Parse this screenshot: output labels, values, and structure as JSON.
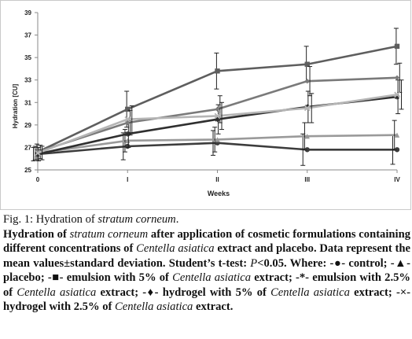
{
  "chart_data": {
    "type": "line",
    "xlabel": "Weeks",
    "ylabel": "Hydration [CU]",
    "categories": [
      "0",
      "I",
      "II",
      "III",
      "IV"
    ],
    "ylim": [
      25,
      39
    ],
    "yticks": [
      25,
      27,
      29,
      31,
      33,
      35,
      37,
      39
    ],
    "grid": false,
    "series": [
      {
        "name": "control",
        "marker": "circle",
        "color": "#3c3c3c",
        "values": [
          26.4,
          27.1,
          27.4,
          26.8,
          26.8
        ],
        "err": [
          0.6,
          1.2,
          1.1,
          1.4,
          1.3
        ]
      },
      {
        "name": "placebo",
        "marker": "triangle",
        "color": "#9a9a9a",
        "values": [
          26.5,
          27.6,
          27.7,
          28.0,
          28.1
        ],
        "err": [
          0.6,
          1.0,
          1.1,
          1.2,
          1.3
        ]
      },
      {
        "name": "emulsion with 5% of Centella asiatica extract",
        "marker": "square",
        "color": "#5e5e5e",
        "values": [
          26.6,
          30.4,
          33.8,
          34.4,
          36.0
        ],
        "err": [
          0.7,
          1.6,
          1.6,
          1.6,
          1.6
        ]
      },
      {
        "name": "emulsion with 2.5% of Centella asiatica extract",
        "marker": "asterisk",
        "color": "#2f2f2f",
        "values": [
          26.4,
          28.2,
          29.5,
          30.6,
          31.5
        ],
        "err": [
          0.6,
          1.2,
          1.3,
          1.4,
          1.5
        ]
      },
      {
        "name": "hydrogel with 5% of Centella asiatica extract",
        "marker": "diamond",
        "color": "#7a7a7a",
        "values": [
          26.6,
          29.2,
          30.4,
          32.9,
          33.2
        ],
        "err": [
          0.6,
          1.1,
          1.2,
          1.3,
          1.3
        ]
      },
      {
        "name": "hydrogel with 2.5% of Centella asiatica extract",
        "marker": "cross",
        "color": "#b5b5b5",
        "values": [
          26.5,
          29.5,
          29.8,
          30.5,
          31.7
        ],
        "err": [
          0.6,
          1.2,
          1.2,
          1.3,
          1.3
        ]
      }
    ]
  },
  "caption": {
    "fig_label": "Fig. 1: Hydration of ",
    "fig_label_italic": "stratum corneum",
    "fig_label_end": ".",
    "d1": "Hydration of ",
    "d1_i": "stratum corneum",
    "d2": " after application of cosmetic formulations containing different concentrations of ",
    "d2_i": "Centella asiatica",
    "d3": " extract and placebo. Data represent the mean values±standard deviation. Student’s t-test: ",
    "d3_i": "P",
    "d4": "<0.05. Where: -●- control; -▲- placebo; -■- emulsion with 5% of ",
    "d4_i": "Centella asiatica",
    "d5": " extract; -*- emulsion with 2.5% of ",
    "d5_i": "Centella asiatica",
    "d6": " extract; -♦- hydrogel with 5% of ",
    "d6_i": "Centella asiatica",
    "d7": " extract; -×-hydrogel with 2.5% of ",
    "d7_i": "Centella asiatica",
    "d8": " extract."
  }
}
